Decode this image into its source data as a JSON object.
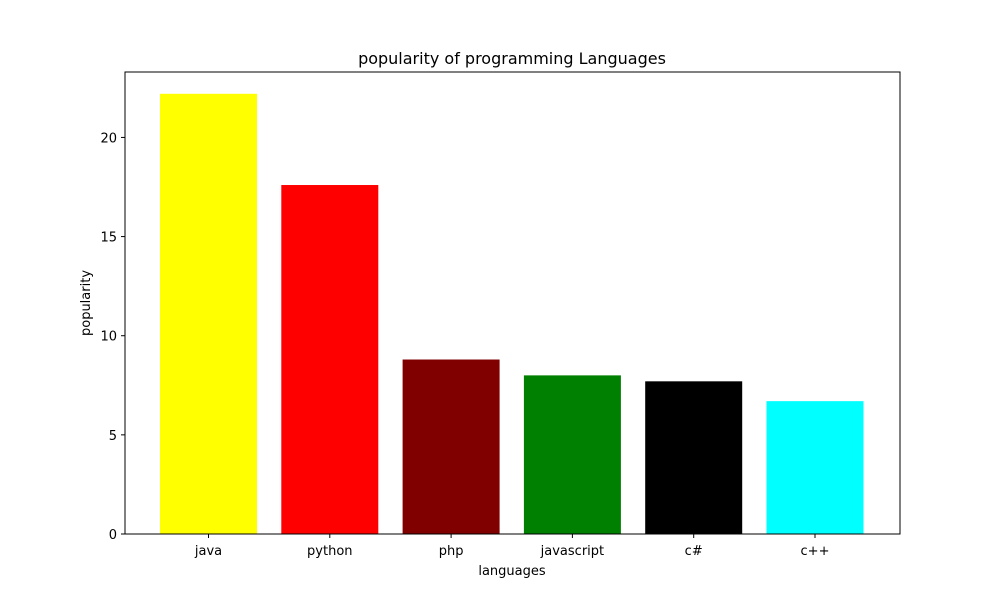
{
  "chart_data": {
    "type": "bar",
    "title": "popularity of programming Languages",
    "xlabel": "languages",
    "ylabel": "popularity",
    "categories": [
      "java",
      "python",
      "php",
      "javascript",
      "c#",
      "c++"
    ],
    "values": [
      22.2,
      17.6,
      8.8,
      8.0,
      7.7,
      6.7
    ],
    "colors": [
      "#ffff00",
      "#ff0000",
      "#800000",
      "#008000",
      "#000000",
      "#00ffff"
    ],
    "ylim": [
      0,
      23.3
    ],
    "yticks": [
      0,
      5,
      10,
      15,
      20
    ],
    "grid": false
  }
}
